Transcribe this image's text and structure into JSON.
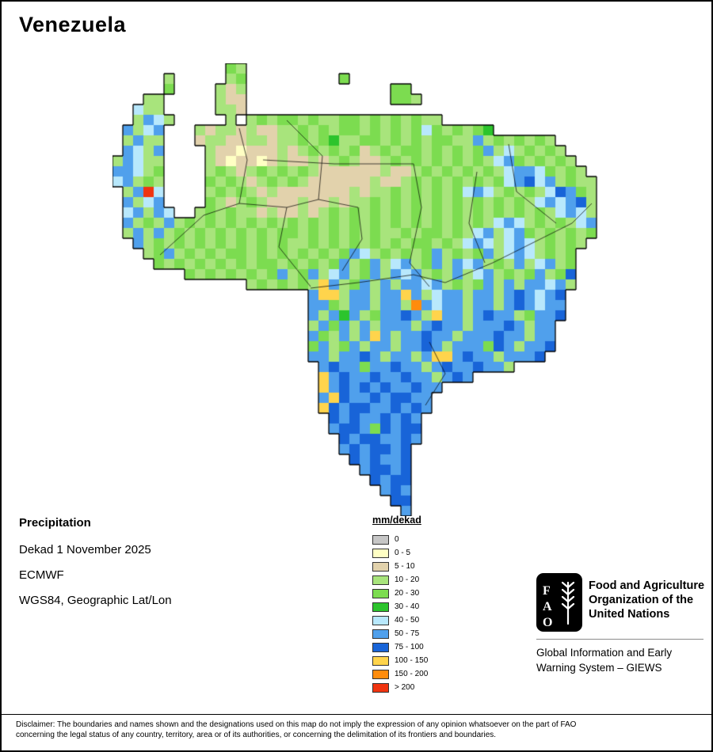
{
  "page": {
    "title": "Venezuela"
  },
  "info": {
    "heading": "Precipitation",
    "dekad": "Dekad 1 November 2025",
    "source": "ECMWF",
    "projection": "WGS84, Geographic Lat/Lon"
  },
  "legend": {
    "title": "mm/dekad",
    "items": [
      {
        "label": "0",
        "color": "#c6c6c6"
      },
      {
        "label": "0 - 5",
        "color": "#ffffc4"
      },
      {
        "label": "5 - 10",
        "color": "#e2d2ac"
      },
      {
        "label": "10 - 20",
        "color": "#a8e47c"
      },
      {
        "label": "20 - 30",
        "color": "#7cdc50"
      },
      {
        "label": "30 - 40",
        "color": "#2cc42c"
      },
      {
        "label": "40 - 50",
        "color": "#b8e8fc"
      },
      {
        "label": "50 - 75",
        "color": "#50a0ec"
      },
      {
        "label": "75 - 100",
        "color": "#1864d8"
      },
      {
        "label": "100 - 150",
        "color": "#ffd44c"
      },
      {
        "label": "150 - 200",
        "color": "#ff8c0c"
      },
      {
        "label": "> 200",
        "color": "#f03410"
      }
    ]
  },
  "branding": {
    "logo_letters": "FAO",
    "org_lines": [
      "Food and Agriculture",
      "Organization of the",
      "United Nations"
    ],
    "giews_lines": [
      "Global Information and Early",
      "Warning System – GIEWS"
    ]
  },
  "disclaimer": {
    "lines": [
      "Disclaimer: The boundaries and names shown and the designations used on this map do not imply the expression of any opinion whatsoever on the part of FAO",
      "concerning the legal status of any country, territory, area or of its authorities, or concerning the delimitation of its frontiers and boundaries."
    ]
  },
  "map": {
    "cell_size": 13,
    "palette": {
      "0": "#c6c6c6",
      "a": "#ffffc4",
      "b": "#e2d2ac",
      "c": "#a8e47c",
      "d": "#7cdc50",
      "e": "#2cc42c",
      "f": "#b8e8fc",
      "g": "#50a0ec",
      "h": "#1864d8",
      "y": "#ffd44c",
      "o": "#ff8c0c",
      "r": "#f03410"
    },
    "rows": [
      {
        "y": 0,
        "cells": [
          [
            11,
            "dc"
          ]
        ]
      },
      {
        "y": 1,
        "cells": [
          [
            5,
            "c"
          ],
          [
            11,
            "cd"
          ],
          [
            22,
            "d"
          ]
        ]
      },
      {
        "y": 2,
        "cells": [
          [
            5,
            "d"
          ],
          [
            10,
            "cbc"
          ],
          [
            27,
            "dd"
          ]
        ]
      },
      {
        "y": 3,
        "cells": [
          [
            3,
            "cc"
          ],
          [
            10,
            "cbb"
          ],
          [
            27,
            "ddc"
          ]
        ]
      },
      {
        "y": 4,
        "cells": [
          [
            2,
            "fcc"
          ],
          [
            10,
            "ccb"
          ]
        ]
      },
      {
        "y": 5,
        "cells": [
          [
            2,
            "cgfc"
          ],
          [
            11,
            "c"
          ],
          [
            13,
            "cdcddcdccddcdcdcdcc"
          ]
        ]
      },
      {
        "y": 6,
        "cells": [
          [
            1,
            "gcfg"
          ],
          [
            8,
            "cbccbcbbccdcdcddcdcdcdfdcdcde"
          ]
        ]
      },
      {
        "y": 7,
        "cells": [
          [
            1,
            "cgcc"
          ],
          [
            8,
            "bccbbccbccdcdeccddcdcdcddccgcdcdcdc"
          ]
        ]
      },
      {
        "y": 8,
        "cells": [
          [
            1,
            "gfcg"
          ],
          [
            9,
            "cbbabbbcbcdcdcdbcdcddcdcdcdgcfcdcdc"
          ]
        ]
      },
      {
        "y": 9,
        "cells": [
          [
            0,
            "cgfcc"
          ],
          [
            9,
            "cbabbabcbbcbcdcbbcdcdcdcdcdcfgdcdcdc"
          ]
        ]
      },
      {
        "y": 10,
        "cells": [
          [
            0,
            "ggfcd"
          ],
          [
            9,
            "cdcbcdcdcdcbbbbbbcbbcdcdcdcdcfggfdcdc"
          ]
        ]
      },
      {
        "y": 11,
        "cells": [
          [
            0,
            "fgcdc"
          ],
          [
            9,
            "dcdcbcdcdcbbbbbbcbbcdcdcdcdcdfghfgcdcc"
          ]
        ]
      },
      {
        "y": 12,
        "cells": [
          [
            1,
            "cgrf"
          ],
          [
            9,
            "cdcdcbcbbbbbbbcbccdcdcdcdfgfcdcdcfhgdc"
          ]
        ]
      },
      {
        "y": 13,
        "cells": [
          [
            1,
            "gcfg"
          ],
          [
            9,
            "dcbcdcbbbcbbcbccdcdcdcdcdcdcdcdcfgfghc"
          ]
        ]
      },
      {
        "y": 14,
        "cells": [
          [
            1,
            "fgcgf"
          ],
          [
            8,
            "cdcdccbcbbcbcdcdcdcdcdcdcdcdcdcdcdcfgfc"
          ]
        ]
      },
      {
        "y": 15,
        "cells": [
          [
            1,
            "gcdcgcdcdcdcdcdcdcdcdcdcdcdcdcdcdcdcfgfcdcdcfg"
          ]
        ]
      },
      {
        "y": 16,
        "cells": [
          [
            1,
            "cgcgcdcdcdcdcdcddcdcdcdcdccdcddcdcfgcfgdcdcdcd"
          ]
        ]
      },
      {
        "y": 17,
        "cells": [
          [
            2,
            "gcdcdcdcdcdcdcdccdcdcdcdcdcddcdcfgfcfgfcdcdc"
          ]
        ]
      },
      {
        "y": 18,
        "cells": [
          [
            3,
            "cdgcdcdcddcdcdcdcdcdgfcdcdcdgcdcdgcfgfcdcd"
          ]
        ]
      },
      {
        "y": 19,
        "cells": [
          [
            4,
            "dcdcdcdcdcddcdcdcdgcdgcfgcdgcgfgcdcgcfgcd"
          ]
        ]
      },
      {
        "y": 20,
        "cells": [
          [
            7,
            "dcdcdcdcdgcdgcfgcdgcgfgcdcgcfgcdcdgcdh"
          ]
        ]
      },
      {
        "y": 21,
        "cells": [
          [
            13,
            "cdcdcdcygcdgcgcggfgcdcdgcgcggfgc"
          ]
        ]
      },
      {
        "y": 22,
        "cells": [
          [
            19,
            "gyycggcggygcfggcggcghgfgh"
          ]
        ]
      },
      {
        "y": 23,
        "cells": [
          [
            19,
            "ggdcggcggcogfggcggcghgfgg"
          ]
        ]
      },
      {
        "y": 24,
        "cells": [
          [
            19,
            "gcgegcdgghgcyggcghggcdggh"
          ]
        ]
      },
      {
        "y": 25,
        "cells": [
          [
            19,
            "cgdgcgcgggcghggcggghgcgg"
          ]
        ]
      },
      {
        "y": 26,
        "cells": [
          [
            19,
            "gdcgcgygcgghggcggghggcgg"
          ]
        ]
      },
      {
        "y": 27,
        "cells": [
          [
            19,
            "dgcdgcggcgghgcgggdhgcggh"
          ]
        ]
      },
      {
        "y": 28,
        "cells": [
          [
            19,
            "ggcgghgcggcgyyghggcgggh"
          ]
        ]
      },
      {
        "y": 29,
        "cells": [
          [
            20,
            "ghggdgghggcghgghggc"
          ]
        ]
      },
      {
        "y": 30,
        "cells": [
          [
            20,
            "yghgghgghggcghg"
          ]
        ]
      },
      {
        "y": 31,
        "cells": [
          [
            20,
            "yghghghgghgg"
          ]
        ]
      },
      {
        "y": 32,
        "cells": [
          [
            20,
            "gyhgghghhgg"
          ]
        ]
      },
      {
        "y": 33,
        "cells": [
          [
            20,
            "yhghhgghghg"
          ]
        ]
      },
      {
        "y": 34,
        "cells": [
          [
            21,
            "hghgghghg"
          ]
        ]
      },
      {
        "y": 35,
        "cells": [
          [
            21,
            "ghhgdhghh"
          ]
        ]
      },
      {
        "y": 36,
        "cells": [
          [
            22,
            "hghhgghg"
          ]
        ]
      },
      {
        "y": 37,
        "cells": [
          [
            22,
            "ghghhgh"
          ]
        ]
      },
      {
        "y": 38,
        "cells": [
          [
            23,
            "hghggh"
          ]
        ]
      },
      {
        "y": 39,
        "cells": [
          [
            24,
            "ghhgh"
          ]
        ]
      },
      {
        "y": 40,
        "cells": [
          [
            25,
            "hghh"
          ]
        ]
      },
      {
        "y": 41,
        "cells": [
          [
            26,
            "ghg"
          ]
        ]
      },
      {
        "y": 42,
        "cells": [
          [
            27,
            "hh"
          ]
        ]
      },
      {
        "y": 43,
        "cells": [
          [
            28,
            "g"
          ]
        ]
      }
    ],
    "boundaries": [
      [
        [
          60,
          242
        ],
        [
          115,
          192
        ],
        [
          160,
          177
        ],
        [
          170,
          122
        ],
        [
          160,
          82
        ]
      ],
      [
        [
          160,
          177
        ],
        [
          220,
          182
        ],
        [
          260,
          172
        ],
        [
          265,
          117
        ],
        [
          220,
          72
        ]
      ],
      [
        [
          220,
          182
        ],
        [
          210,
          232
        ],
        [
          250,
          282
        ]
      ],
      [
        [
          260,
          172
        ],
        [
          310,
          182
        ],
        [
          315,
          222
        ],
        [
          290,
          262
        ]
      ],
      [
        [
          380,
          127
        ],
        [
          390,
          182
        ],
        [
          375,
          252
        ],
        [
          400,
          282
        ]
      ],
      [
        [
          460,
          137
        ],
        [
          450,
          202
        ],
        [
          470,
          252
        ]
      ],
      [
        [
          500,
          102
        ],
        [
          510,
          162
        ],
        [
          560,
          202
        ]
      ],
      [
        [
          250,
          284
        ],
        [
          310,
          277
        ],
        [
          380,
          267
        ],
        [
          420,
          277
        ],
        [
          480,
          252
        ],
        [
          540,
          222
        ],
        [
          580,
          202
        ],
        [
          605,
          177
        ]
      ],
      [
        [
          400,
          352
        ],
        [
          420,
          392
        ],
        [
          395,
          432
        ]
      ],
      [
        [
          190,
          122
        ],
        [
          280,
          127
        ],
        [
          380,
          127
        ]
      ]
    ]
  }
}
